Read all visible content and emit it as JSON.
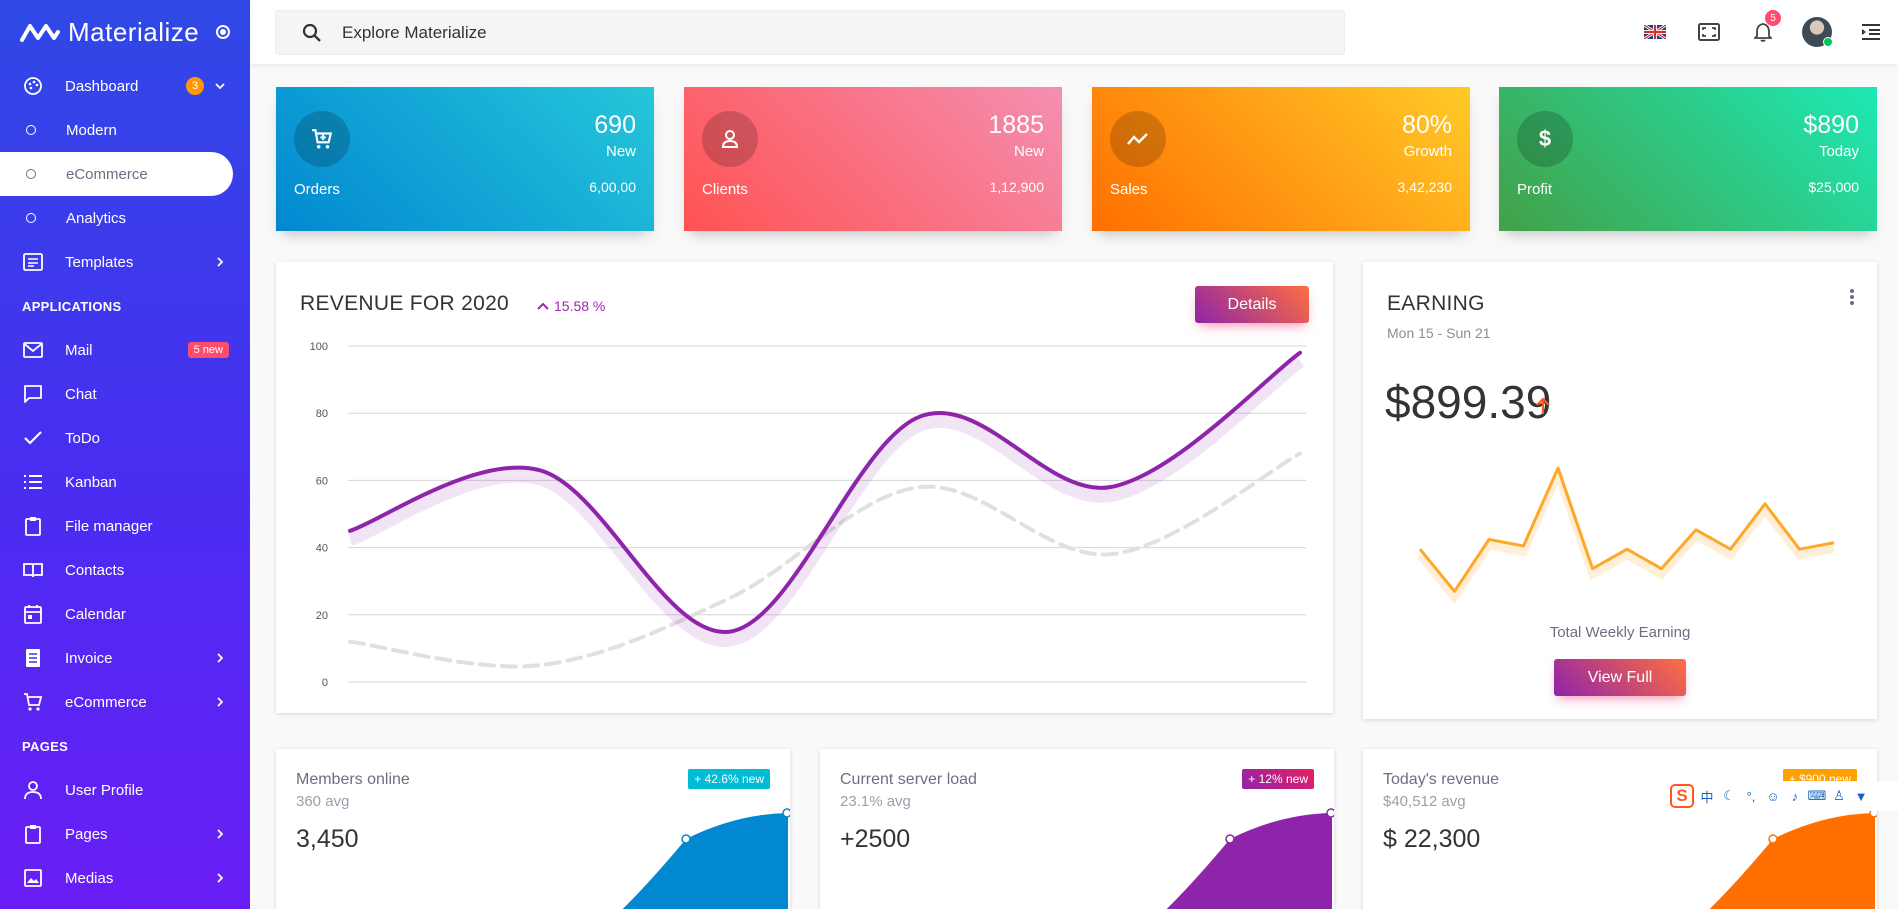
{
  "brand": {
    "name": "Materialize"
  },
  "sidebar": {
    "dashboard": {
      "label": "Dashboard",
      "badge": "3"
    },
    "dashboard_items": [
      {
        "label": "Modern"
      },
      {
        "label": "eCommerce"
      },
      {
        "label": "Analytics"
      }
    ],
    "templates": {
      "label": "Templates"
    },
    "applications_title": "APPLICATIONS",
    "apps": [
      {
        "label": "Mail",
        "icon": "mail-icon",
        "badge": "5 new"
      },
      {
        "label": "Chat",
        "icon": "chat-icon"
      },
      {
        "label": "ToDo",
        "icon": "check-icon"
      },
      {
        "label": "Kanban",
        "icon": "list-icon"
      },
      {
        "label": "File manager",
        "icon": "clipboard-icon"
      },
      {
        "label": "Contacts",
        "icon": "contacts-icon"
      },
      {
        "label": "Calendar",
        "icon": "calendar-icon"
      },
      {
        "label": "Invoice",
        "icon": "invoice-icon"
      },
      {
        "label": "eCommerce",
        "icon": "cart-icon"
      }
    ],
    "pages_title": "PAGES",
    "pages": [
      {
        "label": "User Profile",
        "icon": "user-icon"
      },
      {
        "label": "Pages",
        "icon": "page-icon"
      },
      {
        "label": "Medias",
        "icon": "image-icon"
      }
    ]
  },
  "search": {
    "placeholder": "Explore Materialize"
  },
  "topbar": {
    "notifications_count": "5"
  },
  "stats": [
    {
      "name": "Orders",
      "big": "690",
      "small": "New",
      "value": "6,00,00",
      "icon": "cart-icon",
      "from": "#0288d1",
      "to": "#26c6da"
    },
    {
      "name": "Clients",
      "big": "1885",
      "small": "New",
      "value": "1,12,900",
      "icon": "person-icon",
      "from": "#ff5252",
      "to": "#f48fb1"
    },
    {
      "name": "Sales",
      "big": "80%",
      "small": "Growth",
      "value": "3,42,230",
      "icon": "trend-icon",
      "from": "#ff6f00",
      "to": "#ffca28"
    },
    {
      "name": "Profit",
      "big": "$890",
      "small": "Today",
      "value": "$25,000",
      "icon": "dollar-icon",
      "from": "#43a047",
      "to": "#1de9b6"
    }
  ],
  "revenue": {
    "title": "REVENUE FOR 2020",
    "change": "15.58 %",
    "button": "Details"
  },
  "chart_data": [
    {
      "type": "line",
      "title": "REVENUE FOR 2020",
      "ylim": [
        0,
        100
      ],
      "y_ticks": [
        "100",
        "80",
        "60",
        "40",
        "20",
        "0"
      ],
      "series": [
        {
          "color": "#8e24aa",
          "values": [
            45,
            63,
            15,
            79,
            58,
            98
          ]
        },
        {
          "color": "#e0e0e0",
          "dashed": true,
          "values": [
            12,
            5,
            25,
            58,
            38,
            68
          ]
        }
      ]
    },
    {
      "type": "line",
      "title": "Total Weekly Earning",
      "series": [
        {
          "color": "#ffa726",
          "values": [
            35,
            22,
            38,
            36,
            60,
            29,
            35,
            29,
            41,
            35,
            49,
            35,
            37
          ]
        }
      ]
    }
  ],
  "earning": {
    "title": "EARNING",
    "range": "Mon 15 - Sun 21",
    "amount": "$899.39",
    "label": "Total Weekly Earning",
    "button": "View Full"
  },
  "minis": [
    {
      "title": "Members online",
      "sub": "360 avg",
      "value": "3,450",
      "badge": "+ 42.6% new",
      "badge_color": "#00bcd4",
      "fill": "#0288d1"
    },
    {
      "title": "Current server load",
      "sub": "23.1% avg",
      "value": "+2500",
      "badge": "+ 12% new",
      "badge_color": "#e91e63",
      "fill": "#8e24aa"
    },
    {
      "title": "Today's revenue",
      "sub": "$40,512 avg",
      "value": "$ 22,300",
      "badge": "+ $900 new",
      "badge_color": "#ffa000",
      "fill": "#ff6f00"
    }
  ]
}
